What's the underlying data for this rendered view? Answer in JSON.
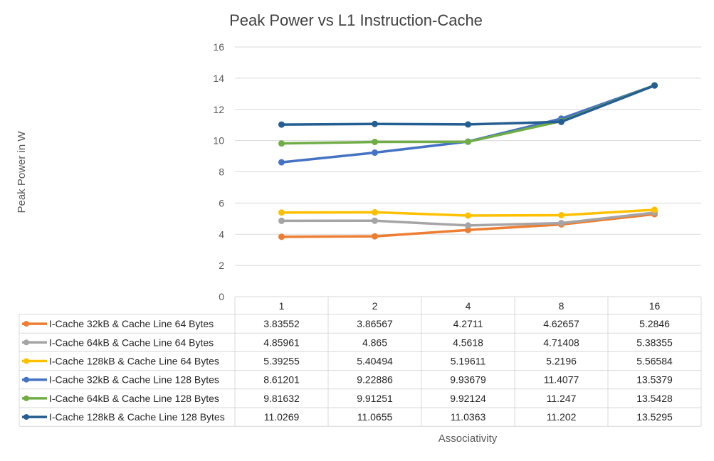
{
  "chart_data": {
    "type": "line",
    "title": "Peak Power vs L1 Instruction-Cache",
    "xlabel": "Associativity",
    "ylabel": "Peak Power in W",
    "categories": [
      "1",
      "2",
      "4",
      "8",
      "16"
    ],
    "ylim": [
      0,
      16
    ],
    "yticks": [
      "0",
      "2",
      "4",
      "6",
      "8",
      "10",
      "12",
      "14",
      "16"
    ],
    "grid": true,
    "legend": "data-table",
    "series": [
      {
        "name": "I-Cache 32kB & Cache Line 64 Bytes",
        "color": "#ED7D31",
        "values": [
          3.83552,
          3.86567,
          4.2711,
          4.62657,
          5.2846
        ],
        "labels": [
          "3.83552",
          "3.86567",
          "4.2711",
          "4.62657",
          "5.2846"
        ]
      },
      {
        "name": "I-Cache 64kB & Cache Line 64 Bytes",
        "color": "#A5A5A5",
        "values": [
          4.85961,
          4.865,
          4.5618,
          4.71408,
          5.38355
        ],
        "labels": [
          "4.85961",
          "4.865",
          "4.5618",
          "4.71408",
          "5.38355"
        ]
      },
      {
        "name": "I-Cache 128kB & Cache Line 64 Bytes",
        "color": "#FFC000",
        "values": [
          5.39255,
          5.40494,
          5.19611,
          5.2196,
          5.56584
        ],
        "labels": [
          "5.39255",
          "5.40494",
          "5.19611",
          "5.2196",
          "5.56584"
        ]
      },
      {
        "name": "I-Cache 32kB & Cache Line 128 Bytes",
        "color": "#4472C4",
        "values": [
          8.61201,
          9.22886,
          9.93679,
          11.4077,
          13.5379
        ],
        "labels": [
          "8.61201",
          "9.22886",
          "9.93679",
          "11.4077",
          "13.5379"
        ]
      },
      {
        "name": "I-Cache 64kB & Cache Line 128 Bytes",
        "color": "#70AD47",
        "values": [
          9.81632,
          9.91251,
          9.92124,
          11.247,
          13.5428
        ],
        "labels": [
          "9.81632",
          "9.91251",
          "9.92124",
          "11.247",
          "13.5428"
        ]
      },
      {
        "name": "I-Cache 128kB & Cache Line 128 Bytes",
        "color": "#255E91",
        "values": [
          11.0269,
          11.0655,
          11.0363,
          11.202,
          13.5295
        ],
        "labels": [
          "11.0269",
          "11.0655",
          "11.0363",
          "11.202",
          "13.5295"
        ]
      }
    ]
  }
}
